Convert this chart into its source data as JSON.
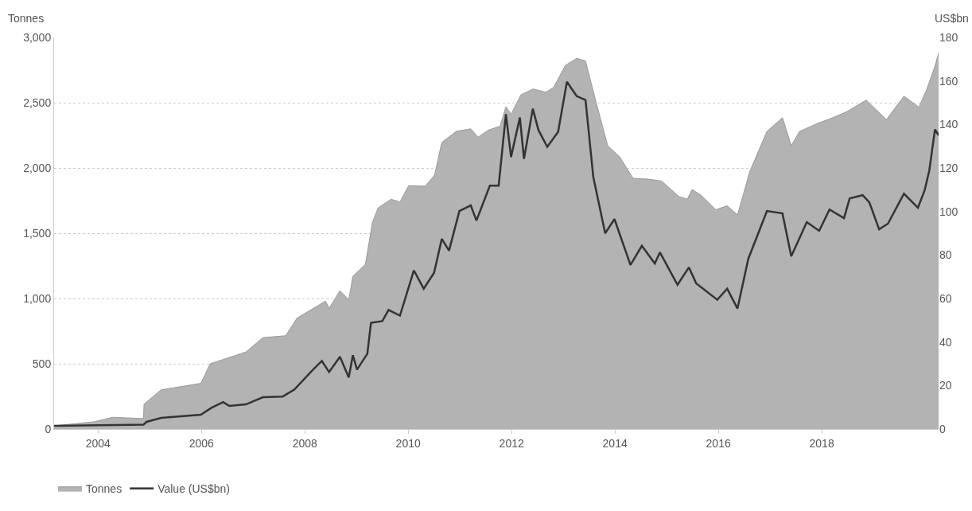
{
  "chart_data": {
    "type": "area",
    "ylabel": "Tonnes",
    "y2label": "US$bn",
    "series": [
      {
        "name": "Tonnes",
        "color": "#b3b3b3",
        "x": [
          2003.15,
          2003.92,
          2004.28,
          2004.88,
          2004.89,
          2005.22,
          2005.99,
          2006.17,
          2006.86,
          2007.19,
          2007.63,
          2007.85,
          2008.4,
          2008.47,
          2008.68,
          2008.85,
          2008.93,
          2009.17,
          2009.31,
          2009.42,
          2009.67,
          2009.84,
          2010.01,
          2010.33,
          2010.51,
          2010.65,
          2010.93,
          2011.21,
          2011.35,
          2011.55,
          2011.78,
          2011.89,
          2011.99,
          2012.18,
          2012.42,
          2012.66,
          2012.81,
          2013.04,
          2013.26,
          2013.43,
          2013.64,
          2013.86,
          2014.09,
          2014.35,
          2014.63,
          2014.9,
          2015.24,
          2015.4,
          2015.49,
          2015.67,
          2015.95,
          2016.17,
          2016.37,
          2016.61,
          2016.94,
          2017.24,
          2017.41,
          2017.57,
          2017.94,
          2018.15,
          2018.48,
          2018.86,
          2019.25,
          2019.59,
          2019.88,
          2020.03,
          2020.19,
          2020.26
        ],
        "values": [
          25,
          55,
          90,
          80,
          190,
          300,
          350,
          500,
          590,
          700,
          715,
          850,
          980,
          925,
          1060,
          990,
          1170,
          1260,
          1585,
          1695,
          1760,
          1740,
          1865,
          1860,
          1945,
          2195,
          2280,
          2300,
          2235,
          2290,
          2320,
          2470,
          2410,
          2560,
          2605,
          2580,
          2615,
          2785,
          2840,
          2820,
          2495,
          2170,
          2085,
          1920,
          1915,
          1900,
          1780,
          1760,
          1835,
          1790,
          1680,
          1710,
          1640,
          1975,
          2280,
          2385,
          2170,
          2280,
          2345,
          2375,
          2430,
          2520,
          2370,
          2550,
          2465,
          2600,
          2780,
          2880
        ]
      },
      {
        "name": "Value (US$bn)",
        "type": "line",
        "axis": "y2",
        "color": "#333333",
        "x": [
          2003.15,
          2004.88,
          2004.94,
          2005.22,
          2005.99,
          2006.2,
          2006.42,
          2006.54,
          2006.86,
          2007.19,
          2007.57,
          2007.8,
          2008.13,
          2008.33,
          2008.47,
          2008.68,
          2008.85,
          2008.93,
          2009.01,
          2009.21,
          2009.28,
          2009.5,
          2009.62,
          2009.84,
          2010.11,
          2010.3,
          2010.5,
          2010.65,
          2010.79,
          2010.99,
          2011.21,
          2011.32,
          2011.58,
          2011.75,
          2011.89,
          2011.99,
          2012.16,
          2012.24,
          2012.41,
          2012.52,
          2012.69,
          2012.9,
          2013.07,
          2013.26,
          2013.43,
          2013.58,
          2013.81,
          2013.99,
          2014.3,
          2014.52,
          2014.77,
          2014.87,
          2015.21,
          2015.43,
          2015.57,
          2015.98,
          2016.17,
          2016.37,
          2016.58,
          2016.94,
          2017.24,
          2017.41,
          2017.71,
          2017.95,
          2018.15,
          2018.43,
          2018.54,
          2018.79,
          2018.92,
          2019.11,
          2019.28,
          2019.59,
          2019.86,
          2019.99,
          2020.08,
          2020.19,
          2020.26
        ],
        "values": [
          1.5,
          2,
          3.3,
          5.1,
          6.6,
          9.8,
          12.4,
          10.6,
          11.3,
          14.6,
          14.9,
          18.2,
          26.6,
          31.3,
          26.2,
          33.2,
          23.7,
          33.9,
          27.3,
          34.6,
          48.8,
          49.6,
          54.7,
          52.1,
          72.9,
          64.5,
          71.8,
          87.4,
          82,
          100.2,
          102.8,
          95.8,
          111.9,
          111.9,
          144.7,
          125,
          143.2,
          124.2,
          147.2,
          137.4,
          129.7,
          136.6,
          159.6,
          153,
          151.2,
          115.9,
          90,
          96.5,
          75.4,
          84.2,
          76.1,
          81.2,
          66.3,
          74.3,
          67,
          59.4,
          64.5,
          55.4,
          78.3,
          100.2,
          99.1,
          79.4,
          95.1,
          91.1,
          100.9,
          96.9,
          106,
          107.5,
          104.2,
          91.8,
          94.4,
          108.2,
          101.7,
          109.7,
          118.8,
          137.7,
          135
        ]
      }
    ],
    "xlim": [
      2003.15,
      2020.26
    ],
    "xticks": [
      2004,
      2006,
      2008,
      2010,
      2012,
      2014,
      2016,
      2018
    ],
    "ylim": [
      0,
      3000
    ],
    "yticks": [
      0,
      500,
      {
        "value": 1000,
        "label": "1,000"
      },
      {
        "value": 1500,
        "label": "1,500"
      },
      {
        "value": 2000,
        "label": "2,000"
      },
      {
        "value": 2500,
        "label": "2,500"
      },
      {
        "value": 3000,
        "label": "3,000"
      }
    ],
    "y2lim": [
      0,
      180
    ],
    "y2ticks": [
      0,
      20,
      40,
      60,
      80,
      100,
      120,
      140,
      160,
      180
    ],
    "grid": "y",
    "legend": "bottom left",
    "line_style": "solid"
  }
}
